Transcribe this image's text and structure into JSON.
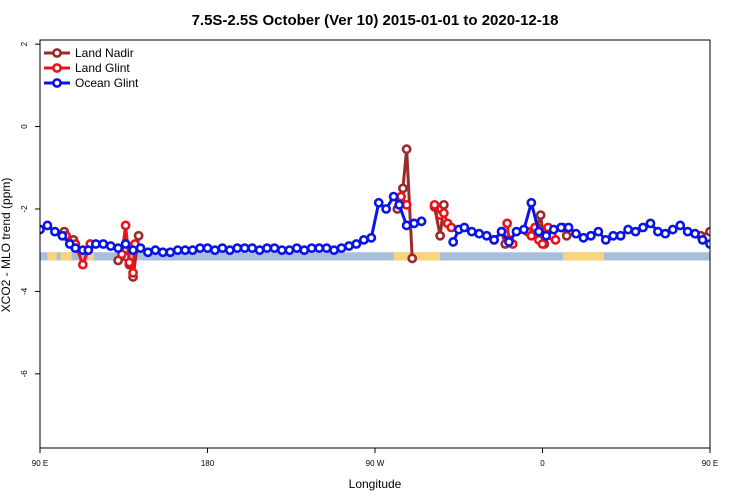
{
  "chart_data": {
    "type": "line",
    "title": "7.5S-2.5S October (Ver 10)   2015-01-01 to 2020-12-18",
    "xlabel": "Longitude",
    "ylabel": "XCO2 - MLO trend (ppm)",
    "xlim": [
      90,
      450
    ],
    "ylim": [
      -7.8,
      2.1
    ],
    "xticks": [
      {
        "value": 90,
        "label": "90 E"
      },
      {
        "value": 180,
        "label": "180"
      },
      {
        "value": 270,
        "label": "90 W"
      },
      {
        "value": 360,
        "label": "0"
      },
      {
        "value": 450,
        "label": "90 E"
      },
      {
        "value": 540,
        "label": "180"
      }
    ],
    "yticks": [
      {
        "value": 2,
        "label": "2"
      },
      {
        "value": 0,
        "label": "0"
      },
      {
        "value": -2,
        "label": "-2"
      },
      {
        "value": -4,
        "label": "-4"
      },
      {
        "value": -6,
        "label": "-6"
      }
    ],
    "grid": false,
    "legend": "top-left",
    "land_strip": {
      "y_range": [
        -3.25,
        -3.05
      ],
      "ocean_color": "#a9bedd",
      "land_color": "#f8d47c",
      "land_segments": [
        [
          94,
          99
        ],
        [
          101,
          107
        ],
        [
          116,
          119
        ],
        [
          280,
          305
        ],
        [
          371,
          393
        ],
        [
          466,
          470
        ]
      ]
    },
    "series": [
      {
        "name": "Land Nadir",
        "color": "#9b2a2a",
        "segments": [
          {
            "x": [
              103,
              108
            ],
            "y": [
              -2.55,
              -2.75
            ]
          },
          {
            "x": [
              132,
              136,
              138,
              140,
              143
            ],
            "y": [
              -3.25,
              -3.15,
              -3.35,
              -3.65,
              -2.65
            ]
          },
          {
            "x": [
              282,
              285,
              287,
              290
            ],
            "y": [
              -2.0,
              -1.5,
              -0.55,
              -3.2
            ]
          },
          {
            "x": [
              302,
              305,
              307
            ],
            "y": [
              -1.95,
              -2.65,
              -1.9
            ]
          },
          {
            "x": [
              334,
              338,
              340
            ],
            "y": [
              -2.75,
              -2.55,
              -2.85
            ]
          },
          {
            "x": [
              357,
              359,
              361,
              363
            ],
            "y": [
              -2.45,
              -2.15,
              -2.85,
              -2.6
            ]
          },
          {
            "x": [
              371,
              373
            ],
            "y": [
              -2.45,
              -2.65
            ]
          },
          {
            "x": [
              445,
              450,
              452,
              455
            ],
            "y": [
              -2.65,
              -2.55,
              -2.85,
              -2.75
            ]
          },
          {
            "x": [
              474,
              477,
              479,
              482
            ],
            "y": [
              -3.25,
              -3.15,
              -3.35,
              -3.65
            ]
          },
          {
            "x": [
              484
            ],
            "y": [
              -2.65
            ]
          }
        ]
      },
      {
        "name": "Land Glint",
        "color": "#e8141a",
        "segments": [
          {
            "x": [
              104,
              109,
              113,
              117
            ],
            "y": [
              -2.65,
              -2.85,
              -3.35,
              -2.85
            ]
          },
          {
            "x": [
              134,
              136,
              138,
              140,
              141
            ],
            "y": [
              -3.1,
              -2.4,
              -3.3,
              -3.55,
              -2.85
            ]
          },
          {
            "x": [
              284,
              287
            ],
            "y": [
              -1.7,
              -1.9
            ]
          },
          {
            "x": [
              302,
              305,
              307,
              309,
              311
            ],
            "y": [
              -1.9,
              -2.15,
              -2.1,
              -2.35,
              -2.45
            ]
          },
          {
            "x": [
              341,
              342,
              344
            ],
            "y": [
              -2.35,
              -2.75,
              -2.85
            ]
          },
          {
            "x": [
              352,
              354,
              356,
              358,
              360
            ],
            "y": [
              -2.55,
              -2.65,
              -2.45,
              -2.75,
              -2.85
            ]
          },
          {
            "x": [
              363,
              365,
              367
            ],
            "y": [
              -2.45,
              -2.65,
              -2.75
            ]
          },
          {
            "x": [
              464,
              467,
              469,
              472
            ],
            "y": [
              -2.85,
              -3.05,
              -3.35,
              -2.85
            ]
          },
          {
            "x": [
              477,
              480,
              482,
              484
            ],
            "y": [
              -2.4,
              -3.2,
              -3.55,
              -2.85
            ]
          }
        ]
      },
      {
        "name": "Ocean Glint",
        "color": "#0a14e8",
        "segments": [
          {
            "x": [
              90,
              94,
              98,
              102,
              106,
              109,
              113,
              116,
              120,
              124,
              128,
              132,
              136,
              140,
              144,
              148,
              152,
              156,
              160,
              164,
              168,
              172,
              176,
              180,
              184,
              188,
              192,
              196,
              200,
              204,
              208,
              212,
              216,
              220,
              224,
              228,
              232,
              236,
              240,
              244,
              248,
              252,
              256,
              260,
              264,
              268,
              272,
              276,
              280,
              283,
              287,
              291,
              295
            ],
            "y": [
              -2.5,
              -2.4,
              -2.55,
              -2.65,
              -2.85,
              -2.95,
              -3.0,
              -3.0,
              -2.85,
              -2.85,
              -2.9,
              -2.95,
              -2.85,
              -3.0,
              -2.95,
              -3.05,
              -3.0,
              -3.05,
              -3.05,
              -3.0,
              -3.0,
              -3.0,
              -2.95,
              -2.95,
              -3.0,
              -2.95,
              -3.0,
              -2.95,
              -2.95,
              -2.95,
              -3.0,
              -2.95,
              -2.95,
              -3.0,
              -3.0,
              -2.95,
              -3.0,
              -2.95,
              -2.95,
              -2.95,
              -3.0,
              -2.95,
              -2.9,
              -2.85,
              -2.75,
              -2.7,
              -1.85,
              -2.0,
              -1.7,
              -1.9,
              -2.4,
              -2.35,
              -2.3
            ]
          },
          {
            "x": [
              312,
              315,
              318,
              322,
              326,
              330,
              334,
              338,
              342,
              346,
              350,
              354,
              358,
              362,
              366,
              370,
              374,
              378,
              382,
              386,
              390,
              394,
              398,
              402,
              406,
              410,
              414,
              418,
              422,
              426,
              430,
              434,
              438,
              442,
              446,
              450,
              454,
              458,
              462,
              466,
              470,
              474,
              478,
              482,
              486,
              490,
              494,
              498,
              502,
              506,
              510
            ],
            "y": [
              -2.8,
              -2.5,
              -2.45,
              -2.55,
              -2.6,
              -2.65,
              -2.75,
              -2.55,
              -2.8,
              -2.55,
              -2.5,
              -1.85,
              -2.55,
              -2.65,
              -2.5,
              -2.45,
              -2.45,
              -2.6,
              -2.7,
              -2.65,
              -2.55,
              -2.75,
              -2.65,
              -2.65,
              -2.5,
              -2.55,
              -2.45,
              -2.35,
              -2.55,
              -2.6,
              -2.5,
              -2.4,
              -2.55,
              -2.6,
              -2.75,
              -2.85,
              -2.9,
              -2.95,
              -3.0,
              -2.9,
              -2.85,
              -2.95,
              -3.05,
              -2.95,
              -3.0,
              -2.95,
              -3.05,
              -3.0,
              -3.0,
              -3.05,
              -3.0
            ]
          }
        ]
      }
    ]
  }
}
